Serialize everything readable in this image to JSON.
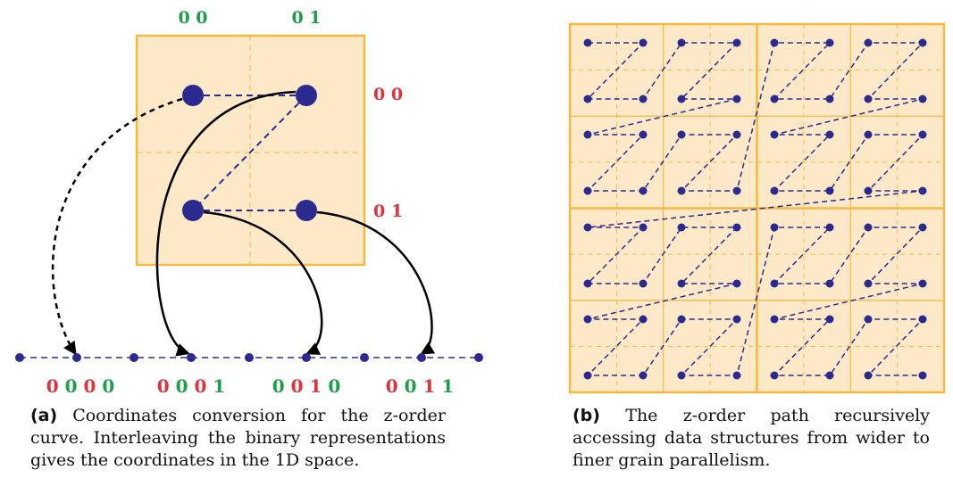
{
  "panel_a": {
    "col_labels": [
      "0 0",
      "0 1"
    ],
    "row_labels": [
      "0 0",
      "0 1"
    ],
    "bottom_labels": [
      [
        {
          "t": "0",
          "c": "red"
        },
        {
          "t": "0",
          "c": "green"
        },
        {
          "t": "0",
          "c": "red"
        },
        {
          "t": "0",
          "c": "green"
        }
      ],
      [
        {
          "t": "0",
          "c": "red"
        },
        {
          "t": "0",
          "c": "green"
        },
        {
          "t": "0",
          "c": "red"
        },
        {
          "t": "1",
          "c": "green"
        }
      ],
      [
        {
          "t": "0",
          "c": "green"
        },
        {
          "t": "0",
          "c": "red"
        },
        {
          "t": "1",
          "c": "red"
        },
        {
          "t": "0",
          "c": "green"
        }
      ],
      [
        {
          "t": "0",
          "c": "red"
        },
        {
          "t": "0",
          "c": "green"
        },
        {
          "t": "1",
          "c": "red"
        },
        {
          "t": "1",
          "c": "green"
        }
      ]
    ],
    "caption_tag": "(a)",
    "caption_text": "Coordinates conversion for the z-order curve. Interleaving the binary representations gives the coordinates in the 1D space."
  },
  "panel_b": {
    "caption_tag": "(b)",
    "caption_text": "The z-order path recursively accessing data structures from wider to finer grain parallelism."
  },
  "colors": {
    "fill": "#fde8c8",
    "border": "#f5b942",
    "dot": "#2b2b8f",
    "red": "#e0323c",
    "green": "#1f9e4a"
  }
}
